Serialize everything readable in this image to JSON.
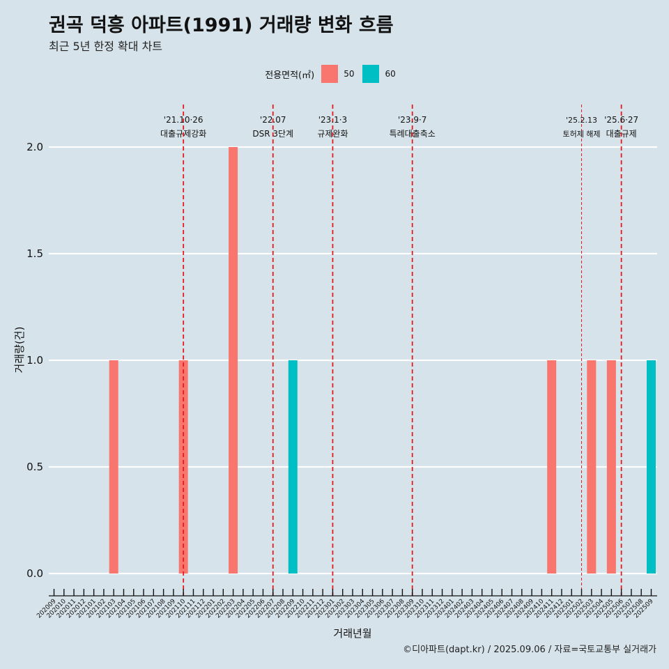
{
  "title": "권곡 덕흥 아파트(1991) 거래량 변화 흐름",
  "subtitle": "최근 5년 한정 확대 차트",
  "caption": "©디아파트(dapt.kr) / 2025.09.06 / 자료=국토교통부 실거래가",
  "legend": {
    "title": "전용면적(㎡)",
    "items": [
      {
        "label": "50",
        "color": "#f8766d"
      },
      {
        "label": "60",
        "color": "#00bfc4"
      }
    ]
  },
  "chart_data": {
    "type": "bar",
    "xlabel": "거래년월",
    "ylabel": "거래량(건)",
    "ylim": [
      -0.1,
      2.2
    ],
    "yticks": [
      "0.0",
      "0.5",
      "1.0",
      "1.5",
      "2.0"
    ],
    "ytick_values": [
      0,
      0.5,
      1.0,
      1.5,
      2.0
    ],
    "categories": [
      "202009",
      "202010",
      "202011",
      "202012",
      "202101",
      "202102",
      "202103",
      "202104",
      "202105",
      "202106",
      "202107",
      "202108",
      "202109",
      "202110",
      "202111",
      "202112",
      "202201",
      "202202",
      "202203",
      "202204",
      "202205",
      "202206",
      "202207",
      "202208",
      "202209",
      "202210",
      "202211",
      "202212",
      "202301",
      "202302",
      "202303",
      "202304",
      "202305",
      "202306",
      "202307",
      "202308",
      "202309",
      "202310",
      "202311",
      "202312",
      "202401",
      "202402",
      "202403",
      "202404",
      "202405",
      "202406",
      "202407",
      "202408",
      "202409",
      "202410",
      "202411",
      "202412",
      "202501",
      "202502",
      "202503",
      "202504",
      "202505",
      "202506",
      "202507",
      "202508",
      "202509"
    ],
    "series": [
      {
        "name": "50",
        "color": "#f8766d",
        "points": [
          {
            "x": "202103",
            "y": 1
          },
          {
            "x": "202110",
            "y": 1
          },
          {
            "x": "202203",
            "y": 2
          },
          {
            "x": "202411",
            "y": 1
          },
          {
            "x": "202503",
            "y": 1
          },
          {
            "x": "202505",
            "y": 1
          }
        ]
      },
      {
        "name": "60",
        "color": "#00bfc4",
        "points": [
          {
            "x": "202209",
            "y": 1
          },
          {
            "x": "202509",
            "y": 1
          }
        ]
      }
    ],
    "events": [
      {
        "x": "202110",
        "line1": "'21.10·26",
        "line2": "대출규제강화",
        "style": "bold"
      },
      {
        "x": "202207",
        "line1": "'22.07",
        "line2": "DSR 3단계",
        "style": "bold"
      },
      {
        "x": "202301",
        "line1": "'23.1·3",
        "line2": "규제완화",
        "style": "bold"
      },
      {
        "x": "202309",
        "line1": "'23.9·7",
        "line2": "특례대출축소",
        "style": "bold"
      },
      {
        "x": "202502",
        "line1": "'25.2.13",
        "line2": "토허제 해제",
        "style": "thin"
      },
      {
        "x": "202506",
        "line1": "'25.6·27",
        "line2": "대출규제",
        "style": "bold"
      }
    ]
  }
}
